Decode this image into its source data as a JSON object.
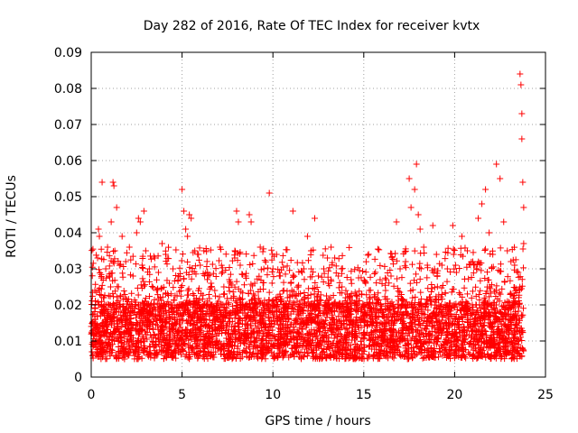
{
  "chart_data": {
    "type": "scatter",
    "title": "Day 282 of 2016, Rate Of TEC Index for receiver kvtx",
    "xlabel": "GPS time / hours",
    "ylabel": "ROTI / TECUs",
    "xlim": [
      0,
      25
    ],
    "ylim": [
      0,
      0.09
    ],
    "xticks": [
      0,
      5,
      10,
      15,
      20,
      25
    ],
    "xtick_labels": [
      "0",
      "5",
      "10",
      "15",
      "20",
      "25"
    ],
    "yticks": [
      0,
      0.01,
      0.02,
      0.03,
      0.04,
      0.05,
      0.06,
      0.07,
      0.08,
      0.09
    ],
    "ytick_labels": [
      "0",
      "0.01",
      "0.02",
      "0.03",
      "0.04",
      "0.05",
      "0.06",
      "0.07",
      "0.08",
      "0.09"
    ],
    "grid": true,
    "marker": "+",
    "color": "#ff0000",
    "series": [
      {
        "name": "ROTI",
        "points": [
          [
            0.1,
            0.015
          ],
          [
            0.2,
            0.024
          ],
          [
            0.3,
            0.012
          ],
          [
            0.35,
            0.033
          ],
          [
            0.4,
            0.041
          ],
          [
            0.45,
            0.039
          ],
          [
            0.5,
            0.018
          ],
          [
            0.6,
            0.054
          ],
          [
            0.7,
            0.022
          ],
          [
            0.8,
            0.03
          ],
          [
            0.9,
            0.036
          ],
          [
            1.0,
            0.028
          ],
          [
            1.1,
            0.043
          ],
          [
            1.2,
            0.054
          ],
          [
            1.25,
            0.053
          ],
          [
            1.3,
            0.035
          ],
          [
            1.4,
            0.047
          ],
          [
            1.5,
            0.025
          ],
          [
            1.7,
            0.039
          ],
          [
            1.9,
            0.032
          ],
          [
            2.1,
            0.036
          ],
          [
            2.3,
            0.028
          ],
          [
            2.5,
            0.04
          ],
          [
            2.6,
            0.044
          ],
          [
            2.7,
            0.043
          ],
          [
            2.8,
            0.031
          ],
          [
            2.9,
            0.046
          ],
          [
            3.0,
            0.035
          ],
          [
            3.2,
            0.03
          ],
          [
            3.5,
            0.033
          ],
          [
            3.7,
            0.029
          ],
          [
            3.9,
            0.037
          ],
          [
            4.1,
            0.034
          ],
          [
            4.3,
            0.026
          ],
          [
            4.5,
            0.03
          ],
          [
            4.8,
            0.028
          ],
          [
            5.0,
            0.052
          ],
          [
            5.1,
            0.046
          ],
          [
            5.2,
            0.041
          ],
          [
            5.3,
            0.039
          ],
          [
            5.4,
            0.045
          ],
          [
            5.5,
            0.044
          ],
          [
            5.7,
            0.035
          ],
          [
            5.9,
            0.034
          ],
          [
            6.0,
            0.031
          ],
          [
            6.2,
            0.035
          ],
          [
            6.4,
            0.029
          ],
          [
            6.6,
            0.026
          ],
          [
            6.8,
            0.024
          ],
          [
            7.0,
            0.021
          ],
          [
            7.3,
            0.025
          ],
          [
            7.6,
            0.027
          ],
          [
            7.9,
            0.033
          ],
          [
            8.0,
            0.046
          ],
          [
            8.1,
            0.043
          ],
          [
            8.2,
            0.031
          ],
          [
            8.5,
            0.028
          ],
          [
            8.7,
            0.045
          ],
          [
            8.8,
            0.043
          ],
          [
            9.0,
            0.026
          ],
          [
            9.3,
            0.036
          ],
          [
            9.5,
            0.03
          ],
          [
            9.8,
            0.051
          ],
          [
            10.0,
            0.03
          ],
          [
            10.2,
            0.034
          ],
          [
            10.4,
            0.028
          ],
          [
            10.6,
            0.024
          ],
          [
            10.8,
            0.022
          ],
          [
            11.1,
            0.046
          ],
          [
            11.4,
            0.025
          ],
          [
            11.7,
            0.03
          ],
          [
            11.9,
            0.039
          ],
          [
            12.1,
            0.035
          ],
          [
            12.3,
            0.044
          ],
          [
            12.5,
            0.028
          ],
          [
            12.8,
            0.03
          ],
          [
            13.0,
            0.033
          ],
          [
            13.2,
            0.036
          ],
          [
            13.4,
            0.033
          ],
          [
            13.6,
            0.028
          ],
          [
            13.8,
            0.025
          ],
          [
            14.0,
            0.022
          ],
          [
            14.3,
            0.027
          ],
          [
            14.6,
            0.021
          ],
          [
            14.9,
            0.019
          ],
          [
            15.1,
            0.026
          ],
          [
            15.3,
            0.024
          ],
          [
            15.6,
            0.022
          ],
          [
            15.9,
            0.027
          ],
          [
            16.2,
            0.024
          ],
          [
            16.5,
            0.028
          ],
          [
            16.8,
            0.043
          ],
          [
            17.0,
            0.03
          ],
          [
            17.3,
            0.032
          ],
          [
            17.5,
            0.055
          ],
          [
            17.6,
            0.047
          ],
          [
            17.8,
            0.052
          ],
          [
            17.9,
            0.059
          ],
          [
            18.0,
            0.045
          ],
          [
            18.1,
            0.041
          ],
          [
            18.3,
            0.036
          ],
          [
            18.5,
            0.031
          ],
          [
            18.8,
            0.042
          ],
          [
            19.0,
            0.034
          ],
          [
            19.3,
            0.031
          ],
          [
            19.6,
            0.03
          ],
          [
            19.9,
            0.042
          ],
          [
            20.1,
            0.029
          ],
          [
            20.4,
            0.039
          ],
          [
            20.7,
            0.035
          ],
          [
            21.0,
            0.032
          ],
          [
            21.3,
            0.044
          ],
          [
            21.5,
            0.048
          ],
          [
            21.7,
            0.052
          ],
          [
            21.9,
            0.04
          ],
          [
            22.1,
            0.034
          ],
          [
            22.3,
            0.059
          ],
          [
            22.5,
            0.055
          ],
          [
            22.7,
            0.043
          ],
          [
            22.9,
            0.035
          ],
          [
            23.1,
            0.032
          ],
          [
            23.3,
            0.031
          ],
          [
            23.5,
            0.029
          ],
          [
            23.6,
            0.084
          ],
          [
            23.65,
            0.081
          ],
          [
            23.7,
            0.073
          ],
          [
            23.7,
            0.066
          ],
          [
            23.75,
            0.054
          ],
          [
            23.8,
            0.047
          ],
          [
            23.8,
            0.037
          ]
        ],
        "baseline_band": {
          "x_range": [
            0,
            23.8
          ],
          "y_low": 0.005,
          "y_high": 0.02
        }
      }
    ]
  }
}
